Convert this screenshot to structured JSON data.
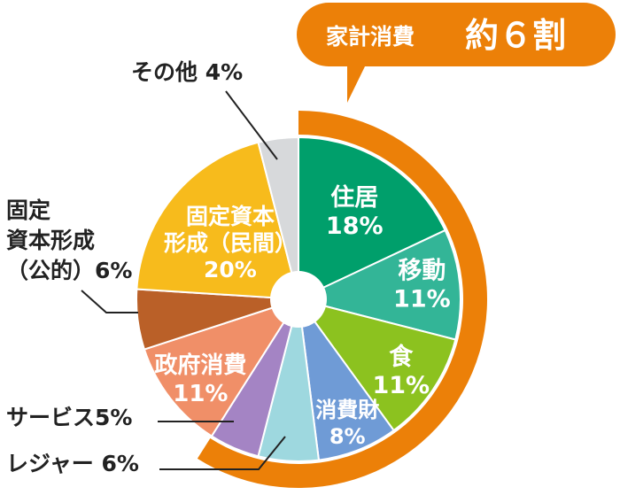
{
  "chart_data": {
    "type": "pie",
    "callout": {
      "prefix": "家計消費",
      "highlight": "約６割",
      "color": "#ec8008"
    },
    "slices": [
      {
        "id": "housing",
        "value": 18,
        "label_lines": [
          "住居",
          "18%"
        ],
        "color": "#009f6b",
        "placement": "inside"
      },
      {
        "id": "transport",
        "value": 11,
        "label_lines": [
          "移動",
          "11%"
        ],
        "color": "#33b597",
        "placement": "inside"
      },
      {
        "id": "food",
        "value": 11,
        "label_lines": [
          "食",
          "11%"
        ],
        "color": "#8cc21f",
        "placement": "inside"
      },
      {
        "id": "consumer",
        "value": 8,
        "label_lines": [
          "消費財",
          "8%"
        ],
        "color": "#6f9bd6",
        "placement": "inside"
      },
      {
        "id": "leisure",
        "value": 6,
        "label_lines": [
          "レジャー 6%"
        ],
        "color": "#9ed8df",
        "placement": "outside"
      },
      {
        "id": "services",
        "value": 5,
        "label_lines": [
          "サービス5%"
        ],
        "color": "#a484c4",
        "placement": "outside"
      },
      {
        "id": "government",
        "value": 11,
        "label_lines": [
          "政府消費",
          "11%"
        ],
        "color": "#f08f68",
        "placement": "inside"
      },
      {
        "id": "public-capital",
        "value": 6,
        "label_lines": [
          "固定",
          "資本形成",
          "（公的）6%"
        ],
        "color": "#ba6028",
        "placement": "outside"
      },
      {
        "id": "private-capital",
        "value": 20,
        "label_lines": [
          "固定資本",
          "形成（民間）",
          "20%"
        ],
        "color": "#f7bb1c",
        "placement": "inside"
      },
      {
        "id": "other",
        "value": 4,
        "label_lines": [
          "その他 4%"
        ],
        "color": "#d7d9db",
        "placement": "outside"
      }
    ]
  }
}
